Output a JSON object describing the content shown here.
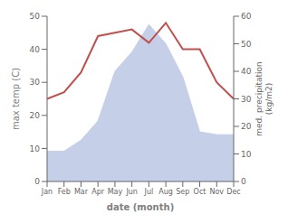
{
  "chart_data": {
    "type": "line",
    "xlabel": "date (month)",
    "ylabel": "max temp (C)",
    "y2label": "med. precipitation\n(kg/m2)",
    "categories": [
      "Jan",
      "Feb",
      "Mar",
      "Apr",
      "May",
      "Jun",
      "Jul",
      "Aug",
      "Sep",
      "Oct",
      "Nov",
      "Dec"
    ],
    "series": [
      {
        "type": "area",
        "axis": "y2",
        "color": "#c5cfe8",
        "values": [
          11,
          11,
          15,
          22,
          40,
          47,
          57,
          50,
          38,
          18,
          17,
          17
        ]
      },
      {
        "type": "line",
        "color": "#c0504d",
        "values": [
          25,
          27,
          33,
          44,
          45,
          46,
          42,
          48,
          40,
          40,
          30,
          25
        ]
      }
    ],
    "ylim": [
      0,
      50
    ],
    "yticks": [
      0,
      10,
      20,
      30,
      40,
      50
    ],
    "y2lim": [
      0,
      60
    ],
    "y2ticks": [
      0,
      10,
      20,
      30,
      40,
      50,
      60
    ],
    "grid": false
  }
}
